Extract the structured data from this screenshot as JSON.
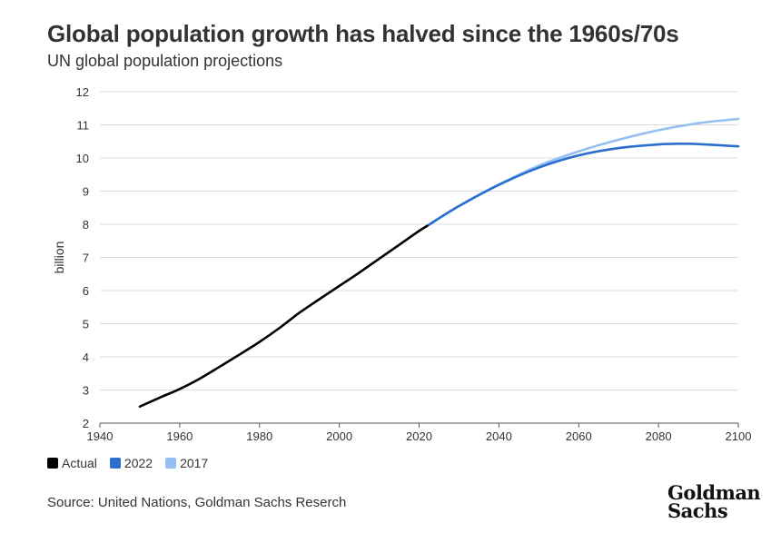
{
  "header": {
    "title": "Global population growth has halved since the 1960s/70s",
    "subtitle": "UN global population projections"
  },
  "footer": {
    "source": "Source: United Nations, Goldman Sachs Reserch",
    "logo_line1": "Goldman",
    "logo_line2": "Sachs"
  },
  "chart_data": {
    "type": "line",
    "title": "Global population growth has halved since the 1960s/70s",
    "subtitle": "UN global population projections",
    "xlabel": "",
    "ylabel": "billion",
    "xlim": [
      1940,
      2100
    ],
    "ylim": [
      2,
      12
    ],
    "x_ticks": [
      1940,
      1960,
      1980,
      2000,
      2020,
      2040,
      2060,
      2080,
      2100
    ],
    "y_ticks": [
      2,
      3,
      4,
      5,
      6,
      7,
      8,
      9,
      10,
      11,
      12
    ],
    "grid": true,
    "legend_position": "bottom-left",
    "series": [
      {
        "name": "Actual",
        "color": "#000000",
        "x": [
          1950,
          1955,
          1960,
          1965,
          1970,
          1975,
          1980,
          1985,
          1990,
          1995,
          2000,
          2005,
          2010,
          2015,
          2020,
          2022
        ],
        "y": [
          2.5,
          2.77,
          3.03,
          3.34,
          3.7,
          4.07,
          4.45,
          4.87,
          5.33,
          5.74,
          6.14,
          6.54,
          6.96,
          7.38,
          7.8,
          7.95
        ]
      },
      {
        "name": "2022",
        "color": "#2a6fce",
        "x": [
          2022,
          2030,
          2040,
          2050,
          2060,
          2070,
          2080,
          2086,
          2090,
          2100
        ],
        "y": [
          7.95,
          8.55,
          9.19,
          9.71,
          10.08,
          10.3,
          10.41,
          10.43,
          10.42,
          10.35
        ]
      },
      {
        "name": "2017",
        "color": "#94bff0",
        "x": [
          2020,
          2030,
          2040,
          2050,
          2060,
          2070,
          2080,
          2090,
          2100
        ],
        "y": [
          7.8,
          8.55,
          9.2,
          9.77,
          10.2,
          10.55,
          10.84,
          11.05,
          11.18
        ]
      }
    ]
  }
}
